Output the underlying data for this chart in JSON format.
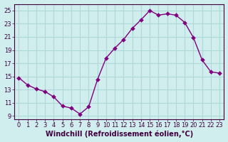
{
  "x": [
    0,
    1,
    2,
    3,
    4,
    5,
    6,
    7,
    8,
    9,
    10,
    11,
    12,
    13,
    14,
    15,
    16,
    17,
    18,
    19,
    20,
    21,
    22,
    23
  ],
  "y": [
    14.8,
    13.7,
    13.1,
    12.7,
    11.9,
    10.5,
    10.2,
    9.3,
    10.4,
    14.5,
    17.8,
    19.3,
    20.6,
    22.3,
    23.6,
    25.0,
    24.3,
    24.5,
    24.3,
    23.2,
    20.9,
    17.5,
    15.7,
    15.5
  ],
  "line_color": "#800080",
  "marker": "D",
  "marker_size": 3,
  "background_color": "#d0eeee",
  "grid_color": "#b0d8d8",
  "xlabel": "Windchill (Refroidissement éolien,°C)",
  "xlim": [
    -0.5,
    23.5
  ],
  "ylim": [
    8.5,
    26
  ],
  "yticks": [
    9,
    11,
    13,
    15,
    17,
    19,
    21,
    23,
    25
  ],
  "xticks": [
    0,
    1,
    2,
    3,
    4,
    5,
    6,
    7,
    8,
    9,
    10,
    11,
    12,
    13,
    14,
    15,
    16,
    17,
    18,
    19,
    20,
    21,
    22,
    23
  ],
  "tick_label_size": 6,
  "xlabel_size": 7,
  "axis_color": "#400040"
}
